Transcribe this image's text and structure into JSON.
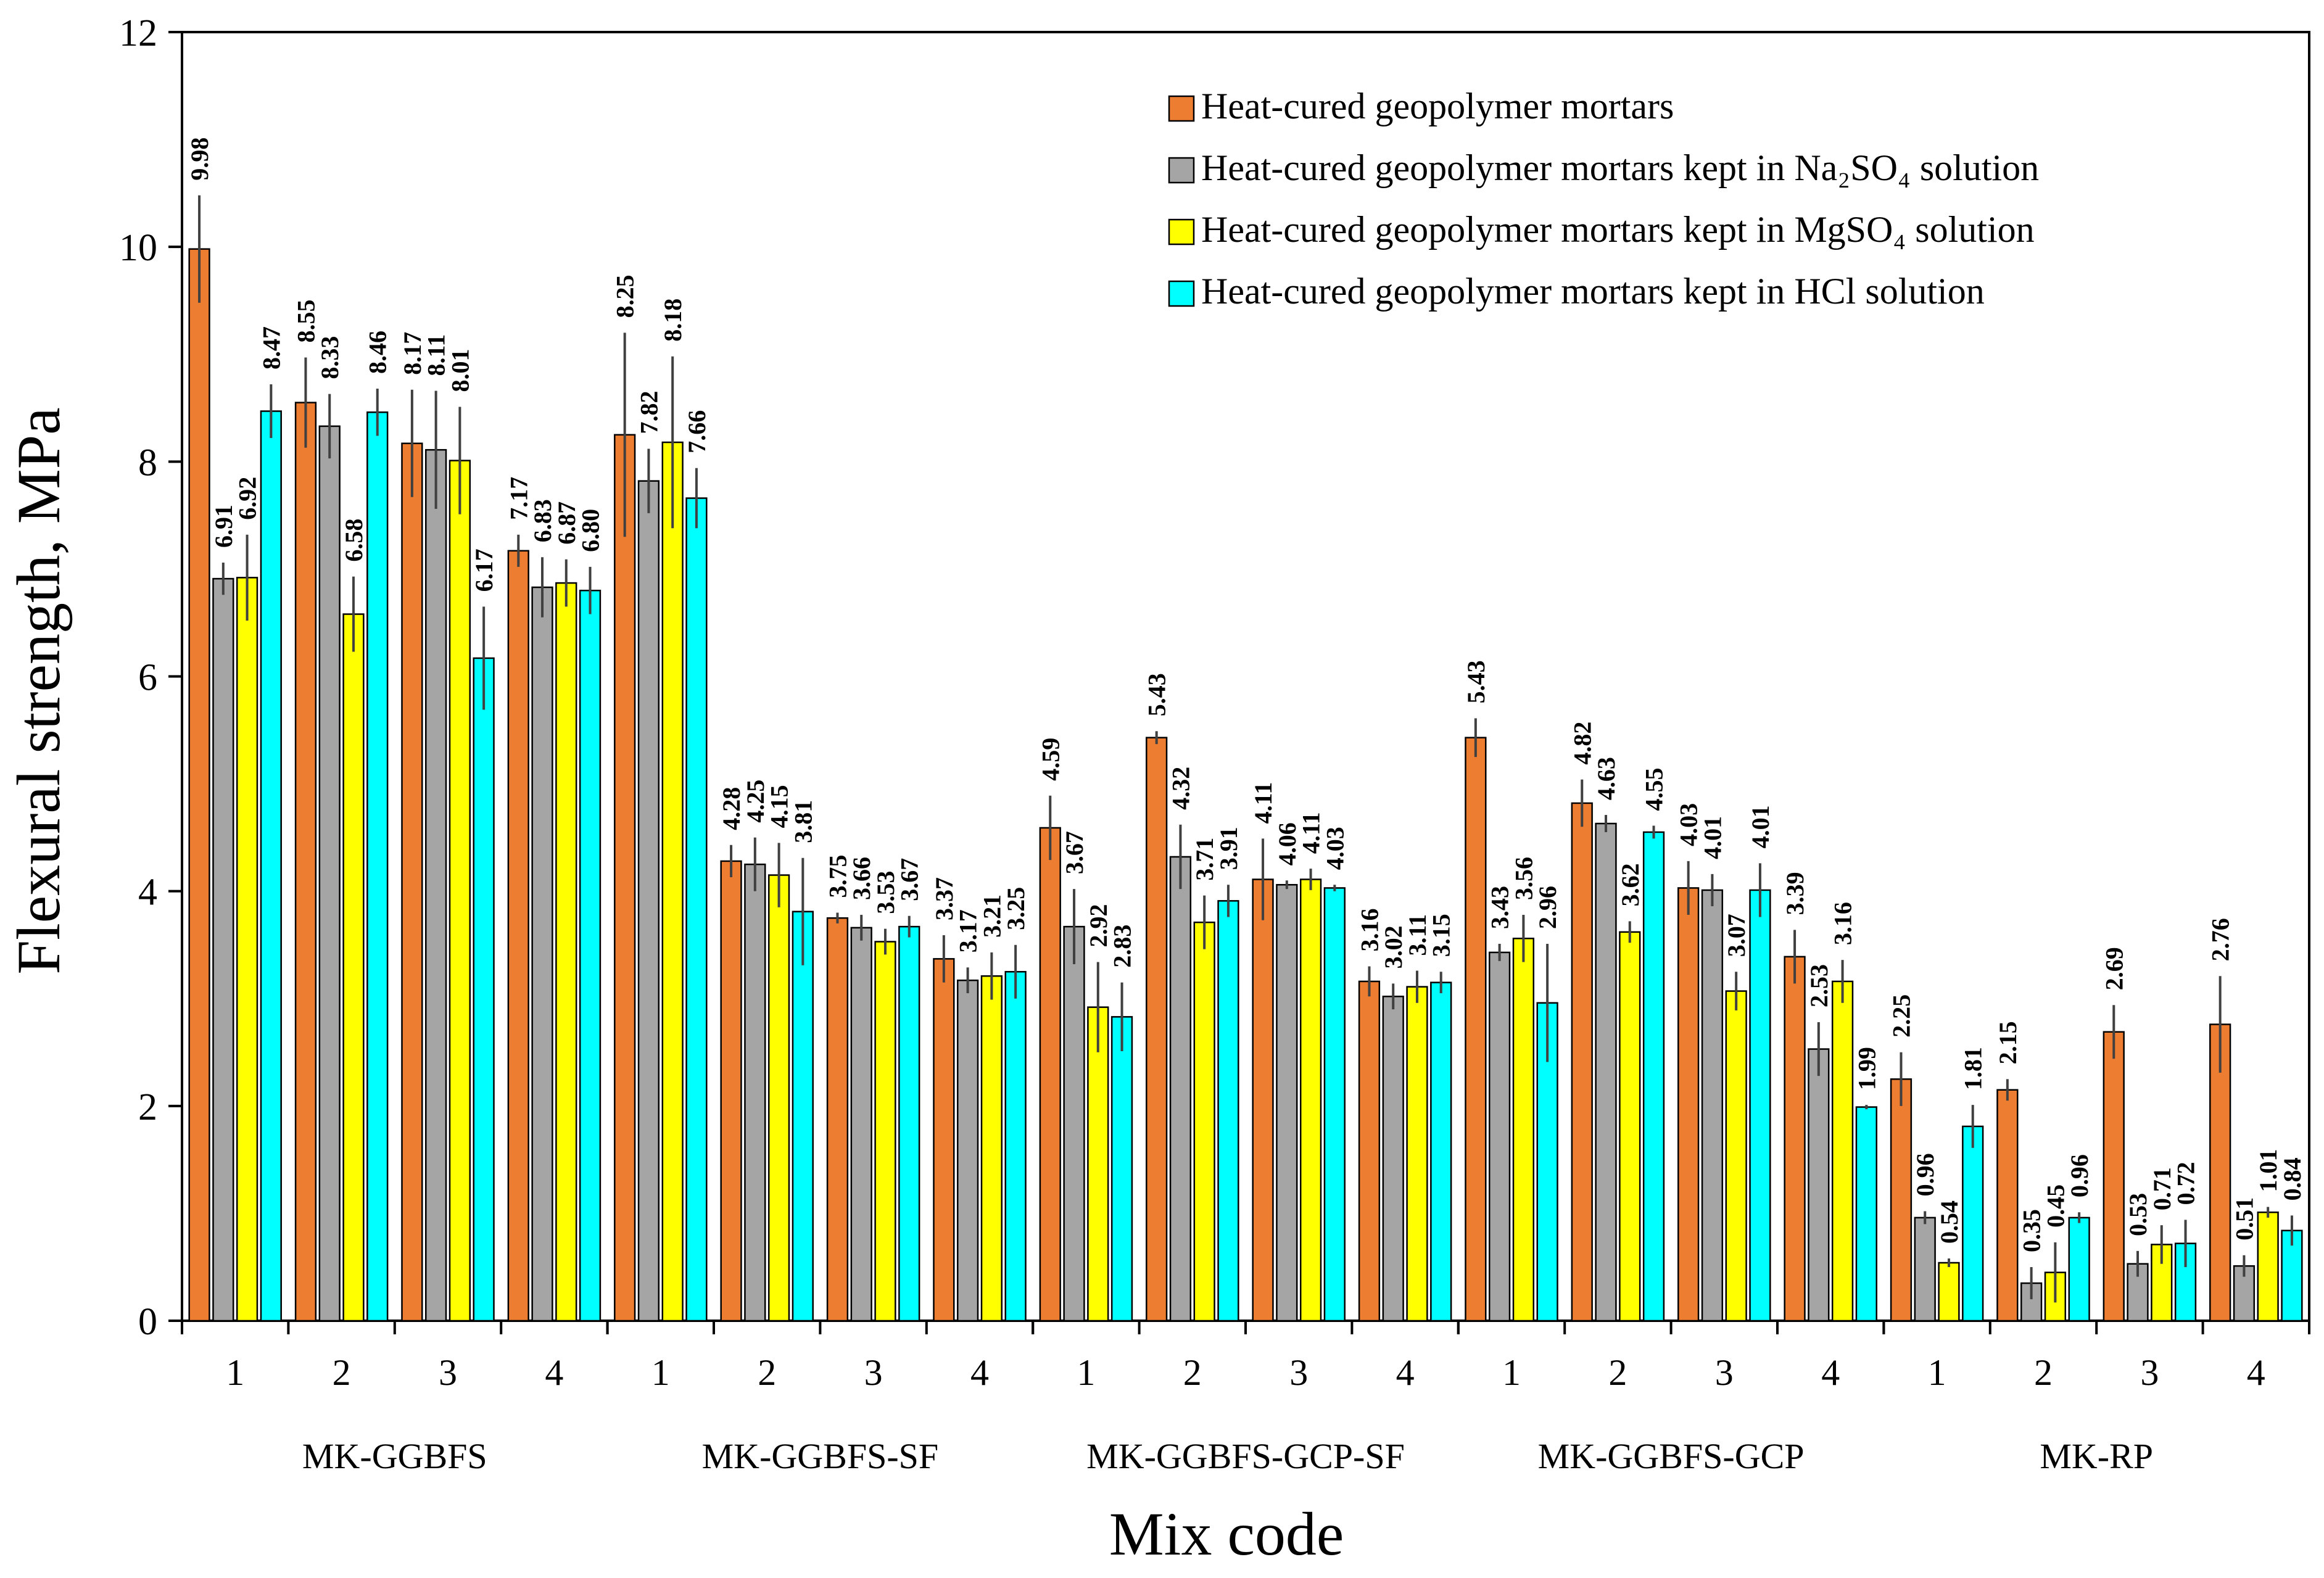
{
  "chart_data": {
    "type": "bar",
    "title": "",
    "ylabel": "Flexural strength, MPa",
    "xlabel": "Mix code",
    "ylim": [
      0,
      12
    ],
    "yticks": [
      0,
      2,
      4,
      6,
      8,
      10,
      12
    ],
    "grid": false,
    "legend_position": "top-right",
    "groups": [
      {
        "name": "MK-GGBFS",
        "categories": [
          "1",
          "2",
          "3",
          "4"
        ]
      },
      {
        "name": "MK-GGBFS-SF",
        "categories": [
          "1",
          "2",
          "3",
          "4"
        ]
      },
      {
        "name": "MK-GGBFS-GCP-SF",
        "categories": [
          "1",
          "2",
          "3",
          "4"
        ]
      },
      {
        "name": "MK-GGBFS-GCP",
        "categories": [
          "1",
          "2",
          "3",
          "4"
        ]
      },
      {
        "name": "MK-RP",
        "categories": [
          "1",
          "2",
          "3",
          "4"
        ]
      }
    ],
    "series": [
      {
        "name": "Heat-cured geopolymer mortars",
        "color": "#ED7D31",
        "values": [
          9.98,
          8.55,
          8.17,
          7.17,
          8.25,
          4.28,
          3.75,
          3.37,
          4.59,
          5.43,
          4.11,
          3.16,
          5.43,
          4.82,
          4.03,
          3.39,
          2.25,
          2.15,
          2.69,
          2.76
        ],
        "labels": [
          "9.98",
          "8.55",
          "8.17",
          "7.17",
          "8.25",
          "4.28",
          "3.75",
          "3.37",
          "4.59",
          "5.43",
          "4.11",
          "3.16",
          "5.43",
          "4.82",
          "4.03",
          "3.39",
          "2.25",
          "2.15",
          "2.69",
          "2.76"
        ],
        "errors": [
          0.5,
          0.42,
          0.5,
          0.15,
          0.95,
          0.15,
          0.05,
          0.22,
          0.3,
          0.06,
          0.38,
          0.14,
          0.18,
          0.22,
          0.25,
          0.25,
          0.25,
          0.1,
          0.25,
          0.45
        ]
      },
      {
        "name": "Heat-cured geopolymer mortars kept in Na₂SO₄ solution",
        "color": "#A5A5A5",
        "values": [
          6.91,
          8.33,
          8.11,
          6.83,
          7.82,
          4.25,
          3.66,
          3.17,
          3.67,
          4.32,
          4.06,
          3.02,
          3.43,
          4.63,
          4.01,
          2.53,
          0.96,
          0.35,
          0.53,
          0.51
        ],
        "labels": [
          "6.91",
          "8.33",
          "8.11",
          "6.83",
          "7.82",
          "4.25",
          "3.66",
          "3.17",
          "3.67",
          "4.32",
          "4.06",
          "3.02",
          "3.43",
          "4.63",
          "4.01",
          "2.53",
          "0.96",
          "0.35",
          "0.53",
          "0.51"
        ],
        "errors": [
          0.15,
          0.3,
          0.55,
          0.28,
          0.3,
          0.25,
          0.12,
          0.12,
          0.35,
          0.3,
          0.04,
          0.12,
          0.08,
          0.08,
          0.15,
          0.25,
          0.06,
          0.15,
          0.12,
          0.1
        ]
      },
      {
        "name": "Heat-cured geopolymer mortars kept in MgSO₄ solution",
        "color": "#FFFF00",
        "values": [
          6.92,
          6.58,
          8.01,
          6.87,
          8.18,
          4.15,
          3.53,
          3.21,
          2.92,
          3.71,
          4.11,
          3.11,
          3.56,
          3.62,
          3.07,
          3.16,
          0.54,
          0.45,
          0.71,
          1.01
        ],
        "labels": [
          "6.92",
          "6.58",
          "8.01",
          "6.87",
          "8.18",
          "4.15",
          "3.53",
          "3.21",
          "2.92",
          "3.71",
          "4.11",
          "3.11",
          "3.56",
          "3.62",
          "3.07",
          "3.16",
          "0.54",
          "0.45",
          "0.71",
          "1.01"
        ],
        "errors": [
          0.4,
          0.35,
          0.5,
          0.22,
          0.8,
          0.3,
          0.12,
          0.22,
          0.42,
          0.25,
          0.1,
          0.15,
          0.22,
          0.1,
          0.18,
          0.2,
          0.04,
          0.28,
          0.18,
          0.05
        ]
      },
      {
        "name": "Heat-cured geopolymer mortars kept in HCl solution",
        "color": "#00FFFF",
        "values": [
          8.47,
          8.46,
          6.17,
          6.8,
          7.66,
          3.81,
          3.67,
          3.25,
          2.83,
          3.91,
          4.03,
          3.15,
          2.96,
          4.55,
          4.01,
          1.99,
          1.81,
          0.96,
          0.72,
          0.84
        ],
        "labels": [
          "8.47",
          "8.46",
          "6.17",
          "6.80",
          "7.66",
          "3.81",
          "3.67",
          "3.25",
          "2.83",
          "3.91",
          "4.03",
          "3.15",
          "2.96",
          "4.55",
          "4.01",
          "1.99",
          "1.81",
          "0.96",
          "0.72",
          "0.84"
        ],
        "errors": [
          0.25,
          0.22,
          0.48,
          0.22,
          0.28,
          0.5,
          0.1,
          0.25,
          0.32,
          0.15,
          0.03,
          0.1,
          0.55,
          0.06,
          0.25,
          0.02,
          0.2,
          0.05,
          0.22,
          0.14
        ]
      }
    ]
  }
}
